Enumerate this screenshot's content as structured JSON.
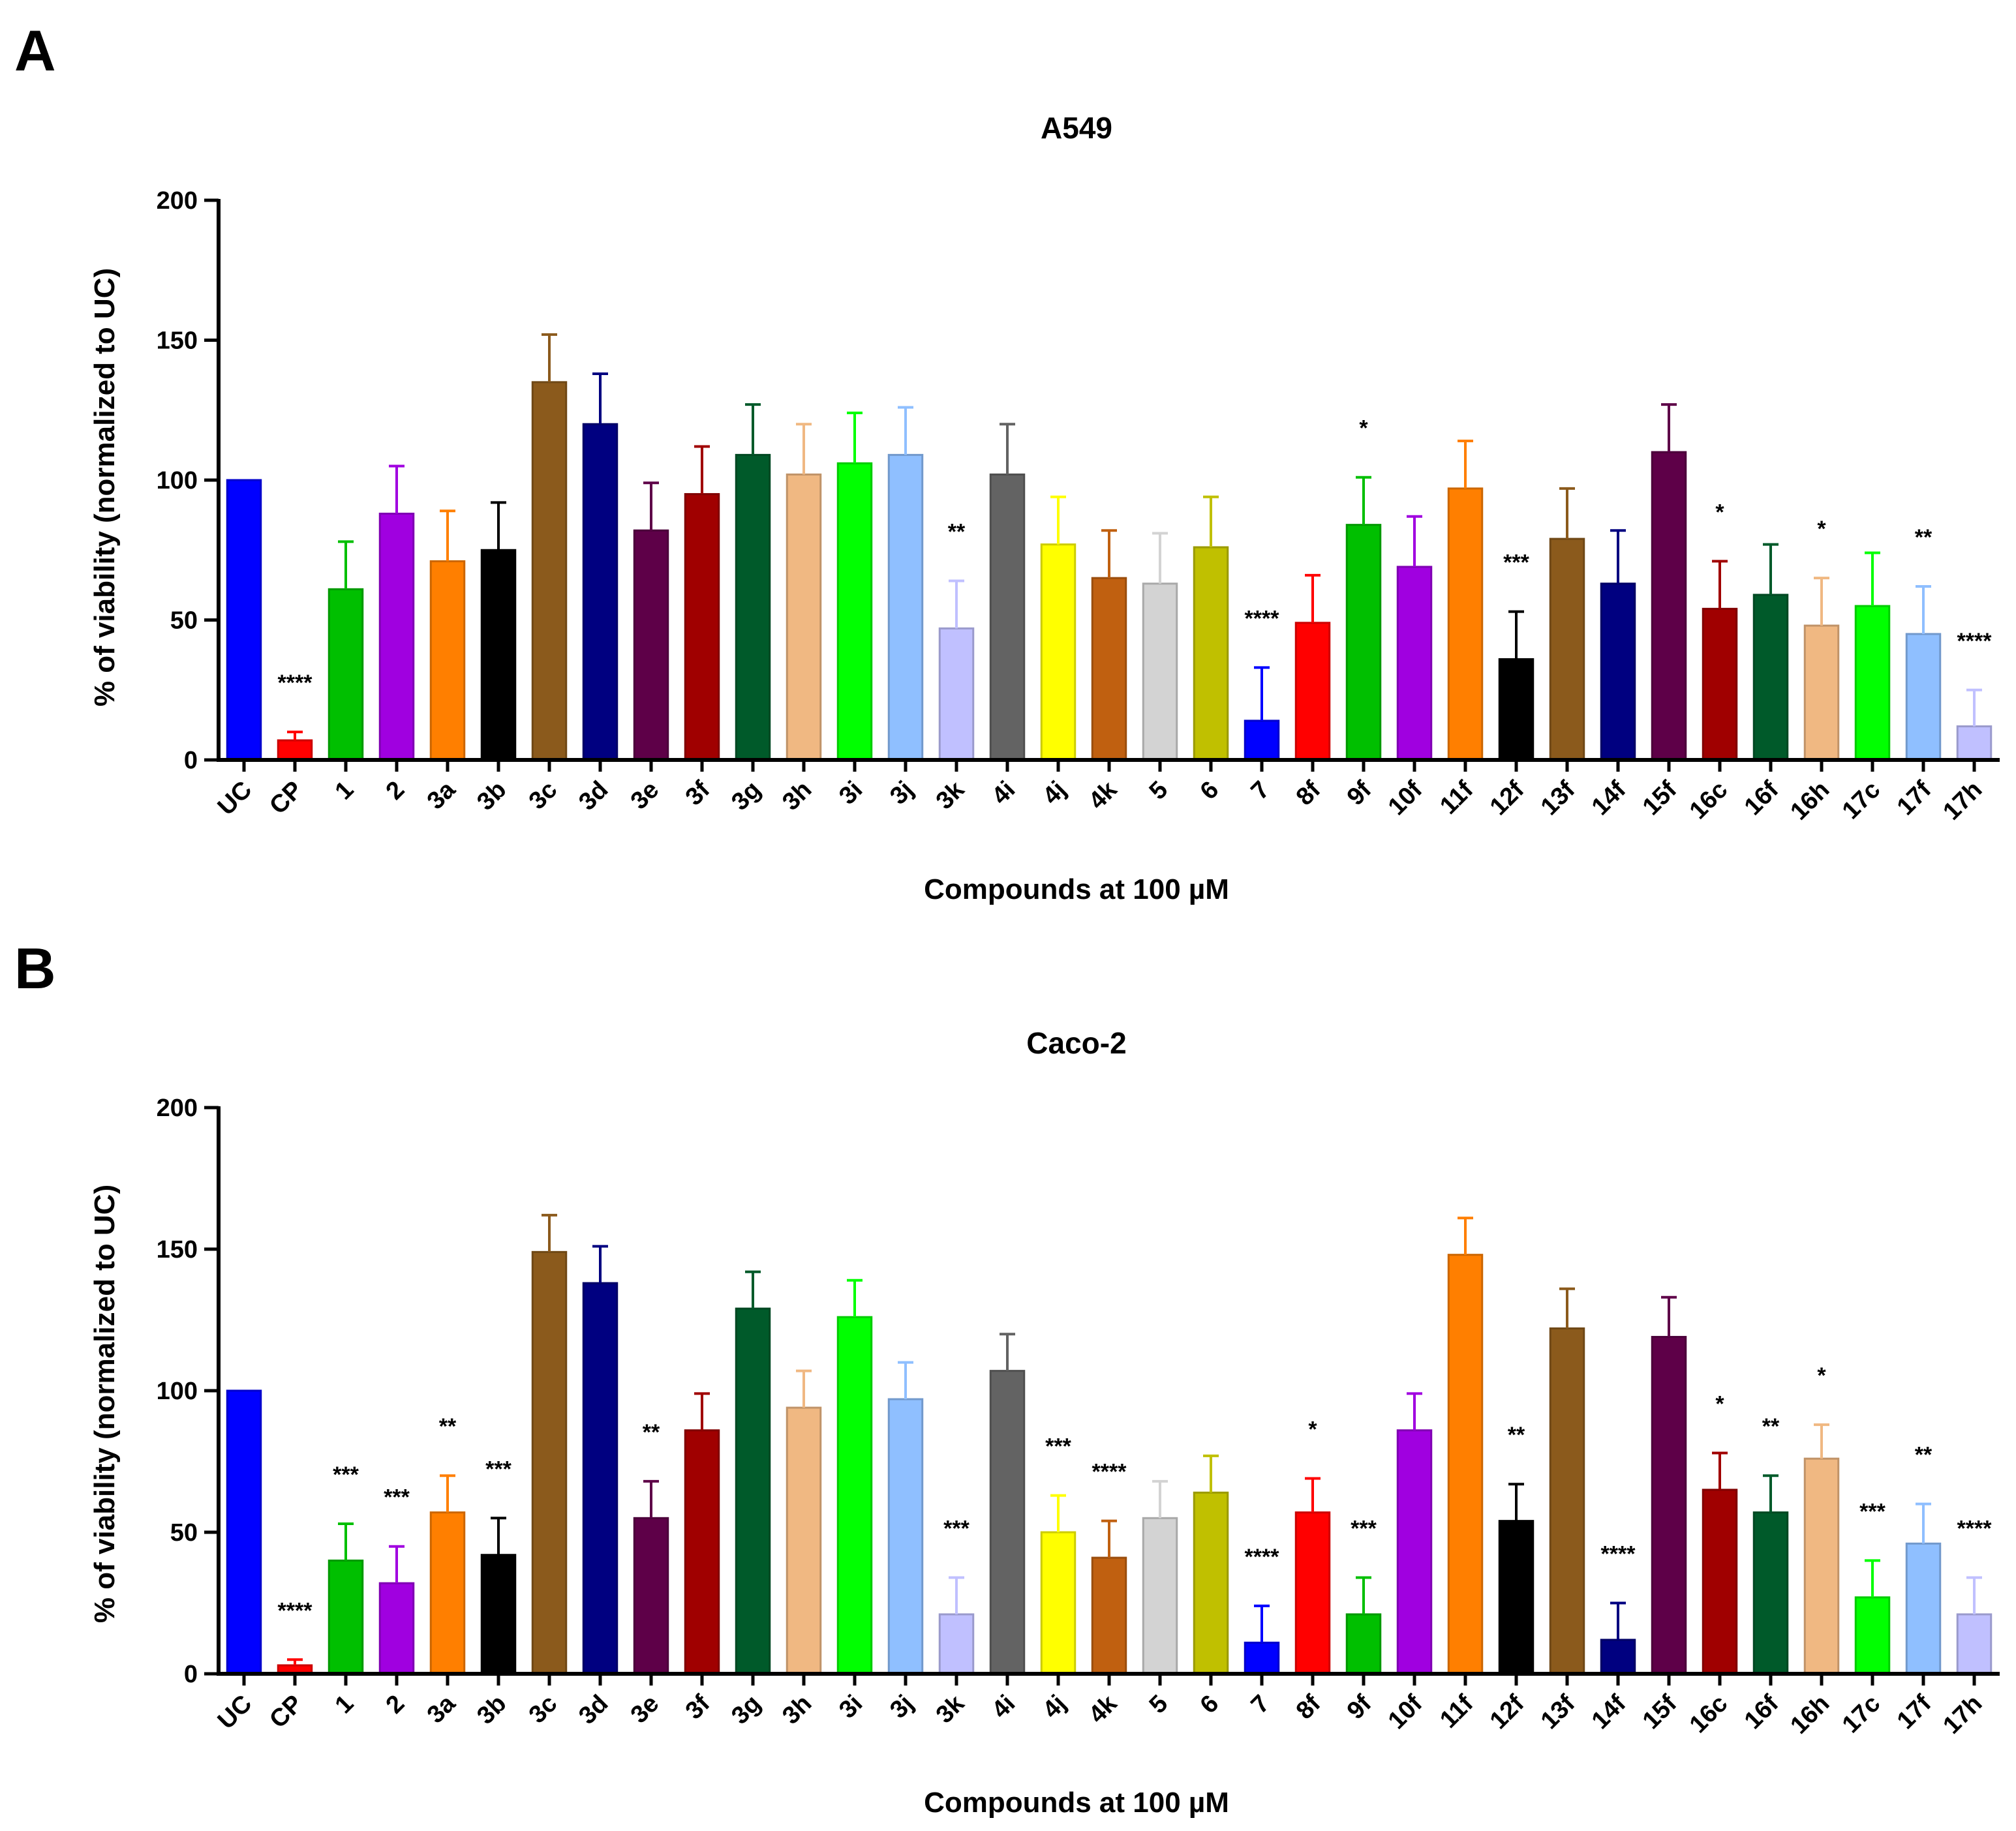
{
  "chart_data": [
    {
      "panel": "A",
      "type": "bar",
      "title": "A549",
      "xlabel": "Compounds at 100 µM",
      "ylabel": "% of viability (normalized to UC)",
      "ylim": [
        0,
        200
      ],
      "yticks": [
        0,
        50,
        100,
        150,
        200
      ],
      "categories": [
        "UC",
        "CP",
        "1",
        "2",
        "3a",
        "3b",
        "3c",
        "3d",
        "3e",
        "3f",
        "3g",
        "3h",
        "3i",
        "3j",
        "3k",
        "4i",
        "4j",
        "4k",
        "5",
        "6",
        "7",
        "8f",
        "9f",
        "10f",
        "11f",
        "12f",
        "13f",
        "14f",
        "15f",
        "16c",
        "16f",
        "16h",
        "17c",
        "17f",
        "17h"
      ],
      "values": [
        100,
        7,
        61,
        88,
        71,
        75,
        135,
        120,
        82,
        95,
        109,
        102,
        106,
        109,
        47,
        102,
        77,
        65,
        63,
        76,
        14,
        49,
        84,
        69,
        97,
        36,
        79,
        63,
        110,
        54,
        59,
        48,
        55,
        45,
        12
      ],
      "errors": [
        0,
        3,
        17,
        17,
        18,
        17,
        17,
        18,
        17,
        17,
        18,
        18,
        18,
        17,
        17,
        18,
        17,
        17,
        18,
        18,
        19,
        17,
        17,
        18,
        17,
        17,
        18,
        19,
        17,
        17,
        18,
        17,
        19,
        17,
        13
      ],
      "significance": [
        "",
        "****",
        "",
        "",
        "",
        "",
        "",
        "",
        "",
        "",
        "",
        "",
        "",
        "",
        "**",
        "",
        "",
        "",
        "",
        "",
        "****",
        "",
        "*",
        "",
        "",
        "***",
        "",
        "",
        "",
        "*",
        "",
        "*",
        "",
        "**",
        "****"
      ],
      "colors": [
        "#0000ff",
        "#ff0000",
        "#00bf00",
        "#a000e0",
        "#ff7f00",
        "#000000",
        "#8b5a1c",
        "#000080",
        "#5e0048",
        "#a00000",
        "#005a2a",
        "#f0b882",
        "#00ff00",
        "#8fbfff",
        "#c0c0ff",
        "#636363",
        "#ffff00",
        "#c06010",
        "#d3d3d3",
        "#c0c000",
        "#0000ff",
        "#ff0000",
        "#00bf00",
        "#a000e0",
        "#ff7f00",
        "#000000",
        "#8b5a1c",
        "#000080",
        "#5e0048",
        "#a00000",
        "#005a2a",
        "#f0b882",
        "#00ff00",
        "#8fbfff",
        "#c0c0ff"
      ]
    },
    {
      "panel": "B",
      "type": "bar",
      "title": "Caco-2",
      "xlabel": "Compounds at 100 µM",
      "ylabel": "% of viability (normalized to UC)",
      "ylim": [
        0,
        200
      ],
      "yticks": [
        0,
        50,
        100,
        150,
        200
      ],
      "categories": [
        "UC",
        "CP",
        "1",
        "2",
        "3a",
        "3b",
        "3c",
        "3d",
        "3e",
        "3f",
        "3g",
        "3h",
        "3i",
        "3j",
        "3k",
        "4i",
        "4j",
        "4k",
        "5",
        "6",
        "7",
        "8f",
        "9f",
        "10f",
        "11f",
        "12f",
        "13f",
        "14f",
        "15f",
        "16c",
        "16f",
        "16h",
        "17c",
        "17f",
        "17h"
      ],
      "values": [
        100,
        3,
        40,
        32,
        57,
        42,
        149,
        138,
        55,
        86,
        129,
        94,
        126,
        97,
        21,
        107,
        50,
        41,
        55,
        64,
        11,
        57,
        21,
        86,
        148,
        54,
        122,
        12,
        119,
        65,
        57,
        76,
        27,
        46,
        21
      ],
      "errors": [
        0,
        2,
        13,
        13,
        13,
        13,
        13,
        13,
        13,
        13,
        13,
        13,
        13,
        13,
        13,
        13,
        13,
        13,
        13,
        13,
        13,
        12,
        13,
        13,
        13,
        13,
        14,
        13,
        14,
        13,
        13,
        12,
        13,
        14,
        13
      ],
      "significance": [
        "",
        "****",
        "***",
        "***",
        "**",
        "***",
        "",
        "",
        "**",
        "",
        "",
        "",
        "",
        "",
        "***",
        "",
        "***",
        "****",
        "",
        "",
        "****",
        "*",
        "***",
        "",
        "",
        "**",
        "",
        "****",
        "",
        "*",
        "**",
        "*",
        "***",
        "**",
        "****"
      ],
      "colors": [
        "#0000ff",
        "#ff0000",
        "#00bf00",
        "#a000e0",
        "#ff7f00",
        "#000000",
        "#8b5a1c",
        "#000080",
        "#5e0048",
        "#a00000",
        "#005a2a",
        "#f0b882",
        "#00ff00",
        "#8fbfff",
        "#c0c0ff",
        "#636363",
        "#ffff00",
        "#c06010",
        "#d3d3d3",
        "#c0c000",
        "#0000ff",
        "#ff0000",
        "#00bf00",
        "#a000e0",
        "#ff7f00",
        "#000000",
        "#8b5a1c",
        "#000080",
        "#5e0048",
        "#a00000",
        "#005a2a",
        "#f0b882",
        "#00ff00",
        "#8fbfff",
        "#c0c0ff"
      ]
    }
  ]
}
